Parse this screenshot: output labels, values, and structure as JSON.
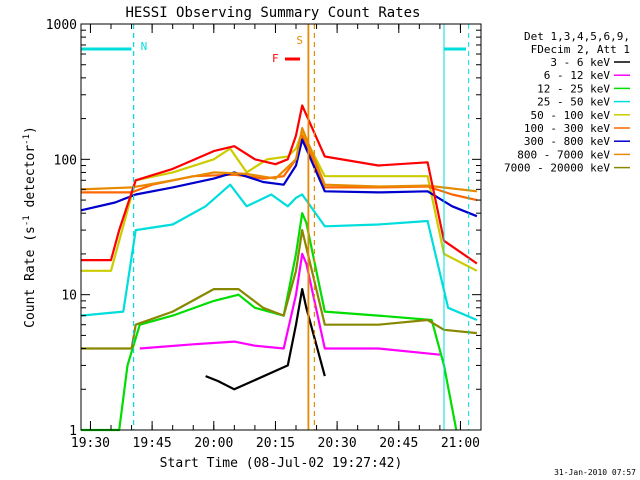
{
  "chart_data": {
    "type": "line",
    "title": "HESSI Observing Summary Count Rates",
    "xlabel": "Start Time (08-Jul-02 19:27:42)",
    "ylabel_pre": "Count Rate (s",
    "ylabel_sup1": "-1",
    "ylabel_mid": " detector",
    "ylabel_sup2": "-1",
    "ylabel_post": ")",
    "y_scale": "log",
    "ylim": [
      1,
      1000
    ],
    "xlim": [
      "19:27:42",
      "21:05:00"
    ],
    "x_ticks": [
      "19:30",
      "19:45",
      "20:00",
      "20:15",
      "20:30",
      "20:45",
      "21:00"
    ],
    "y_ticks": [
      "1",
      "10",
      "100",
      "1000"
    ],
    "legend_header": [
      "Det 1,3,4,5,6,9,",
      "FDecim 2, Att 1"
    ],
    "markers": [
      {
        "label": "N",
        "time": "19:40:30",
        "color": "#00dddd"
      },
      {
        "label": "S",
        "time": "20:23:30",
        "color": "#e88a00"
      },
      {
        "label": "F",
        "color": "#ff0000"
      }
    ],
    "series": [
      {
        "name": "3 - 6 keV",
        "color": "#000000",
        "points": [
          [
            "19:58:00",
            2.5
          ],
          [
            "20:01:00",
            2.3
          ],
          [
            "20:05:00",
            2.0
          ],
          [
            "20:18:00",
            3
          ],
          [
            "20:20:00",
            6
          ],
          [
            "20:21:30",
            11
          ],
          [
            "20:22:30",
            8
          ],
          [
            "20:27:00",
            2.5
          ]
        ]
      },
      {
        "name": "6 - 12 keV",
        "color": "#ff00ff",
        "points": [
          [
            "19:42:00",
            4
          ],
          [
            "19:55:00",
            4.3
          ],
          [
            "20:05:00",
            4.5
          ],
          [
            "20:10:00",
            4.2
          ],
          [
            "20:17:00",
            4
          ],
          [
            "20:20:00",
            10
          ],
          [
            "20:21:30",
            20
          ],
          [
            "20:22:30",
            17
          ],
          [
            "20:27:00",
            4
          ],
          [
            "20:40:00",
            4
          ],
          [
            "20:55:00",
            3.6
          ]
        ]
      },
      {
        "name": "12 - 25 keV",
        "color": "#00dd00",
        "points": [
          [
            "19:27:42",
            1
          ],
          [
            "19:37:00",
            1
          ],
          [
            "19:39:00",
            3
          ],
          [
            "19:42:00",
            6
          ],
          [
            "19:50:00",
            7
          ],
          [
            "20:00:00",
            9
          ],
          [
            "20:06:00",
            10
          ],
          [
            "20:10:00",
            8
          ],
          [
            "20:17:00",
            7
          ],
          [
            "20:20:00",
            20
          ],
          [
            "20:21:30",
            40
          ],
          [
            "20:22:30",
            34
          ],
          [
            "20:27:00",
            7.5
          ],
          [
            "20:40:00",
            7
          ],
          [
            "20:53:00",
            6.5
          ],
          [
            "20:56:00",
            3
          ],
          [
            "20:59:00",
            1
          ]
        ]
      },
      {
        "name": "25 - 50 keV",
        "color": "#00dddd",
        "points": [
          [
            "19:27:42",
            7
          ],
          [
            "19:38:00",
            7.5
          ],
          [
            "19:41:00",
            30
          ],
          [
            "19:50:00",
            33
          ],
          [
            "19:58:00",
            45
          ],
          [
            "20:04:00",
            65
          ],
          [
            "20:08:00",
            45
          ],
          [
            "20:14:00",
            55
          ],
          [
            "20:18:00",
            45
          ],
          [
            "20:20:00",
            52
          ],
          [
            "20:21:30",
            55
          ],
          [
            "20:27:00",
            32
          ],
          [
            "20:40:00",
            33
          ],
          [
            "20:52:00",
            35
          ],
          [
            "20:57:00",
            8
          ],
          [
            "21:04:00",
            6.5
          ]
        ]
      },
      {
        "name": "50 - 100 keV",
        "color": "#cccc00",
        "points": [
          [
            "19:27:42",
            15
          ],
          [
            "19:35:00",
            15
          ],
          [
            "19:37:00",
            25
          ],
          [
            "19:41:00",
            70
          ],
          [
            "19:50:00",
            80
          ],
          [
            "20:00:00",
            100
          ],
          [
            "20:04:00",
            120
          ],
          [
            "20:08:00",
            80
          ],
          [
            "20:13:00",
            100
          ],
          [
            "20:18:00",
            105
          ],
          [
            "20:20:00",
            120
          ],
          [
            "20:21:30",
            160
          ],
          [
            "20:27:00",
            75
          ],
          [
            "20:40:00",
            75
          ],
          [
            "20:52:00",
            75
          ],
          [
            "20:56:00",
            20
          ],
          [
            "21:04:00",
            15
          ]
        ]
      },
      {
        "name": "100 - 300 keV",
        "color": "#ff6600",
        "points": [
          [
            "19:27:42",
            57
          ],
          [
            "19:40:00",
            57
          ],
          [
            "19:45:00",
            65
          ],
          [
            "19:55:00",
            75
          ],
          [
            "20:05:00",
            77
          ],
          [
            "20:12:00",
            72
          ],
          [
            "20:17:00",
            75
          ],
          [
            "20:20:00",
            100
          ],
          [
            "20:21:30",
            150
          ],
          [
            "20:27:00",
            62
          ],
          [
            "20:40:00",
            62
          ],
          [
            "20:52:00",
            63
          ],
          [
            "20:58:00",
            55
          ],
          [
            "21:04:00",
            50
          ]
        ]
      },
      {
        "name": "300 - 800 keV",
        "color": "#0000cc",
        "points": [
          [
            "19:27:42",
            42
          ],
          [
            "19:36:00",
            48
          ],
          [
            "19:41:00",
            55
          ],
          [
            "19:50:00",
            62
          ],
          [
            "20:00:00",
            72
          ],
          [
            "20:05:00",
            80
          ],
          [
            "20:12:00",
            68
          ],
          [
            "20:17:00",
            65
          ],
          [
            "20:20:00",
            90
          ],
          [
            "20:21:30",
            140
          ],
          [
            "20:27:00",
            58
          ],
          [
            "20:40:00",
            57
          ],
          [
            "20:52:00",
            58
          ],
          [
            "20:58:00",
            45
          ],
          [
            "21:04:00",
            38
          ]
        ]
      },
      {
        "name": "800 - 7000 keV",
        "color": "#e88a00",
        "points": [
          [
            "19:27:42",
            60
          ],
          [
            "19:40:00",
            62
          ],
          [
            "19:50:00",
            70
          ],
          [
            "20:00:00",
            80
          ],
          [
            "20:08:00",
            78
          ],
          [
            "20:15:00",
            72
          ],
          [
            "20:20:00",
            100
          ],
          [
            "20:21:30",
            170
          ],
          [
            "20:27:00",
            65
          ],
          [
            "20:40:00",
            63
          ],
          [
            "20:52:00",
            64
          ],
          [
            "21:04:00",
            58
          ]
        ]
      },
      {
        "name": "7000 - 20000 keV",
        "color": "#888800",
        "points": [
          [
            "19:27:42",
            4
          ],
          [
            "19:40:00",
            4
          ],
          [
            "19:41:00",
            6
          ],
          [
            "19:50:00",
            7.5
          ],
          [
            "20:00:00",
            11
          ],
          [
            "20:06:00",
            11
          ],
          [
            "20:12:00",
            8
          ],
          [
            "20:17:00",
            7
          ],
          [
            "20:20:00",
            15
          ],
          [
            "20:21:30",
            30
          ],
          [
            "20:27:00",
            6
          ],
          [
            "20:40:00",
            6
          ],
          [
            "20:52:00",
            6.5
          ],
          [
            "20:56:00",
            5.5
          ],
          [
            "21:04:00",
            5.2
          ]
        ]
      },
      {
        "name": "",
        "color": "#ff0000",
        "points": [
          [
            "19:27:42",
            18
          ],
          [
            "19:35:00",
            18
          ],
          [
            "19:37:00",
            30
          ],
          [
            "19:41:00",
            70
          ],
          [
            "19:50:00",
            85
          ],
          [
            "20:00:00",
            115
          ],
          [
            "20:05:00",
            125
          ],
          [
            "20:10:00",
            100
          ],
          [
            "20:15:00",
            92
          ],
          [
            "20:18:00",
            100
          ],
          [
            "20:20:00",
            150
          ],
          [
            "20:21:30",
            250
          ],
          [
            "20:27:00",
            105
          ],
          [
            "20:40:00",
            90
          ],
          [
            "20:52:00",
            95
          ],
          [
            "20:56:00",
            25
          ],
          [
            "21:04:00",
            17
          ]
        ]
      }
    ]
  },
  "footer_date": "31-Jan-2010 07:57"
}
